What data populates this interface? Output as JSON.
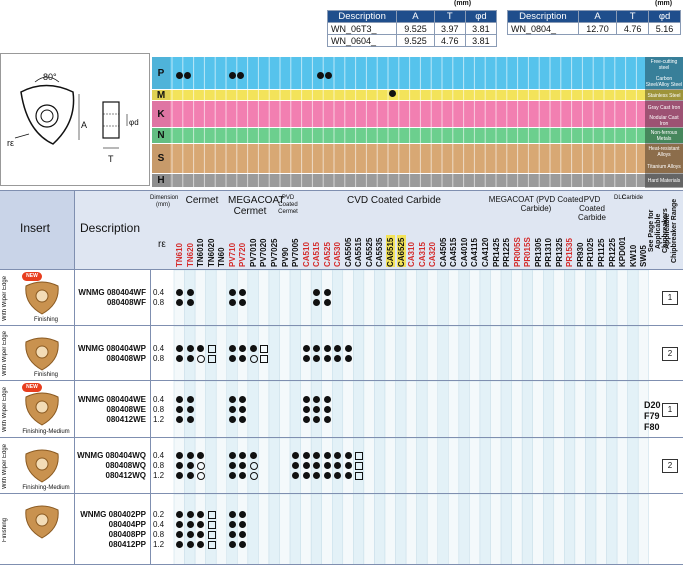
{
  "dim_tables": {
    "unit": "(mm)",
    "left": {
      "headers": [
        "Description",
        "A",
        "T",
        "φd"
      ],
      "rows": [
        [
          "WN_06T3_",
          "9.525",
          "3.97",
          "3.81"
        ],
        [
          "WN_0604_",
          "9.525",
          "4.76",
          "3.81"
        ]
      ]
    },
    "right": {
      "headers": [
        "Description",
        "A",
        "T",
        "φd"
      ],
      "rows": [
        [
          "WN_0804_",
          "12.70",
          "4.76",
          "5.16"
        ]
      ]
    }
  },
  "diagram": {
    "angle": "80°",
    "re": "rε",
    "a": "A",
    "d": "φd",
    "t": "T"
  },
  "workpiece": {
    "letters": [
      "P",
      "M",
      "K",
      "N",
      "S",
      "H"
    ],
    "materials": [
      "Free-cutting steel",
      "Carbon Steel/Alloy Steel",
      "Stainless Steel",
      "Gray Cast Iron",
      "Nodular Cast Iron",
      "Non-ferrous Metals",
      "Heat-resistant Alloys",
      "Titanium Alloys",
      "Hard Materials"
    ]
  },
  "header": {
    "insert": "Insert",
    "description": "Description",
    "dimension": "Dimension (mm)",
    "re": "rε",
    "groups": [
      "Cermet",
      "MEGACOAT Cermet",
      "PVD Coated Cermet",
      "CVD Coated Carbide",
      "MEGACOAT (PVD Coated Carbide)",
      "PVD Coated Carbide",
      "DLC",
      "Carbide"
    ],
    "grades": [
      "TN610",
      "TN620",
      "TN6010",
      "TN6020",
      "TN60",
      "PV710",
      "PV720",
      "PV7010",
      "PV7020",
      "PV7025",
      "PV90",
      "PV7005",
      "CA510",
      "CA515",
      "CA525",
      "CA530",
      "CA5505",
      "CA5515",
      "CA5525",
      "CA5535",
      "CA6515",
      "CA6525",
      "CA310",
      "CA315",
      "CA320",
      "CA4505",
      "CA4515",
      "CA4010",
      "CA4115",
      "CA4120",
      "PR1425",
      "PR1225",
      "PR005S",
      "PR015S",
      "PR1305",
      "PR1310",
      "PR1325",
      "PR1535",
      "PR930",
      "PR1025",
      "PR1125",
      "PR1225",
      "KPD001",
      "KW10",
      "SW05"
    ],
    "see_page": "See Page for Applicable Chipbreakers",
    "applicable": "Applicable Chipbreaker Range",
    "page_ref": [
      "D20",
      "F79",
      "F80"
    ]
  },
  "rows": [
    {
      "side": "With Wiper Edge",
      "new": true,
      "new_label": "NEW",
      "caption": "Finishing",
      "descs": [
        "WNMG 080404WF",
        "080408WF"
      ],
      "re": [
        "0.4",
        "0.8"
      ],
      "range": "1"
    },
    {
      "side": "With Wiper Edge",
      "new": false,
      "caption": "Finishing",
      "descs": [
        "WNMG 080404WP",
        "080408WP"
      ],
      "re": [
        "0.4",
        "0.8"
      ],
      "range": "2"
    },
    {
      "side": "With Wiper Edge",
      "new": true,
      "new_label": "NEW",
      "caption": "Finishing-Medium",
      "descs": [
        "WNMG 080404WE",
        "080408WE",
        "080412WE"
      ],
      "re": [
        "0.4",
        "0.8",
        "1.2"
      ],
      "range": "1"
    },
    {
      "side": "With Wiper Edge",
      "new": false,
      "caption": "Finishing-Medium",
      "descs": [
        "WNMG 080404WQ",
        "080408WQ",
        "080412WQ"
      ],
      "re": [
        "0.4",
        "0.8",
        "1.2"
      ],
      "range": "2"
    },
    {
      "side": "Finishing",
      "new": false,
      "caption": "",
      "descs": [
        "WNMG 080402PP",
        "080404PP",
        "080408PP",
        "080412PP"
      ],
      "re": [
        "0.2",
        "0.4",
        "0.8",
        "1.2"
      ],
      "range": ""
    }
  ],
  "colors": {
    "P": "#56c3ec",
    "M": "#f3e35a",
    "K": "#f27fb1",
    "N": "#6ccf8e",
    "S": "#d8a874",
    "H": "#9b9b9b",
    "header": "#1f4e8c"
  }
}
